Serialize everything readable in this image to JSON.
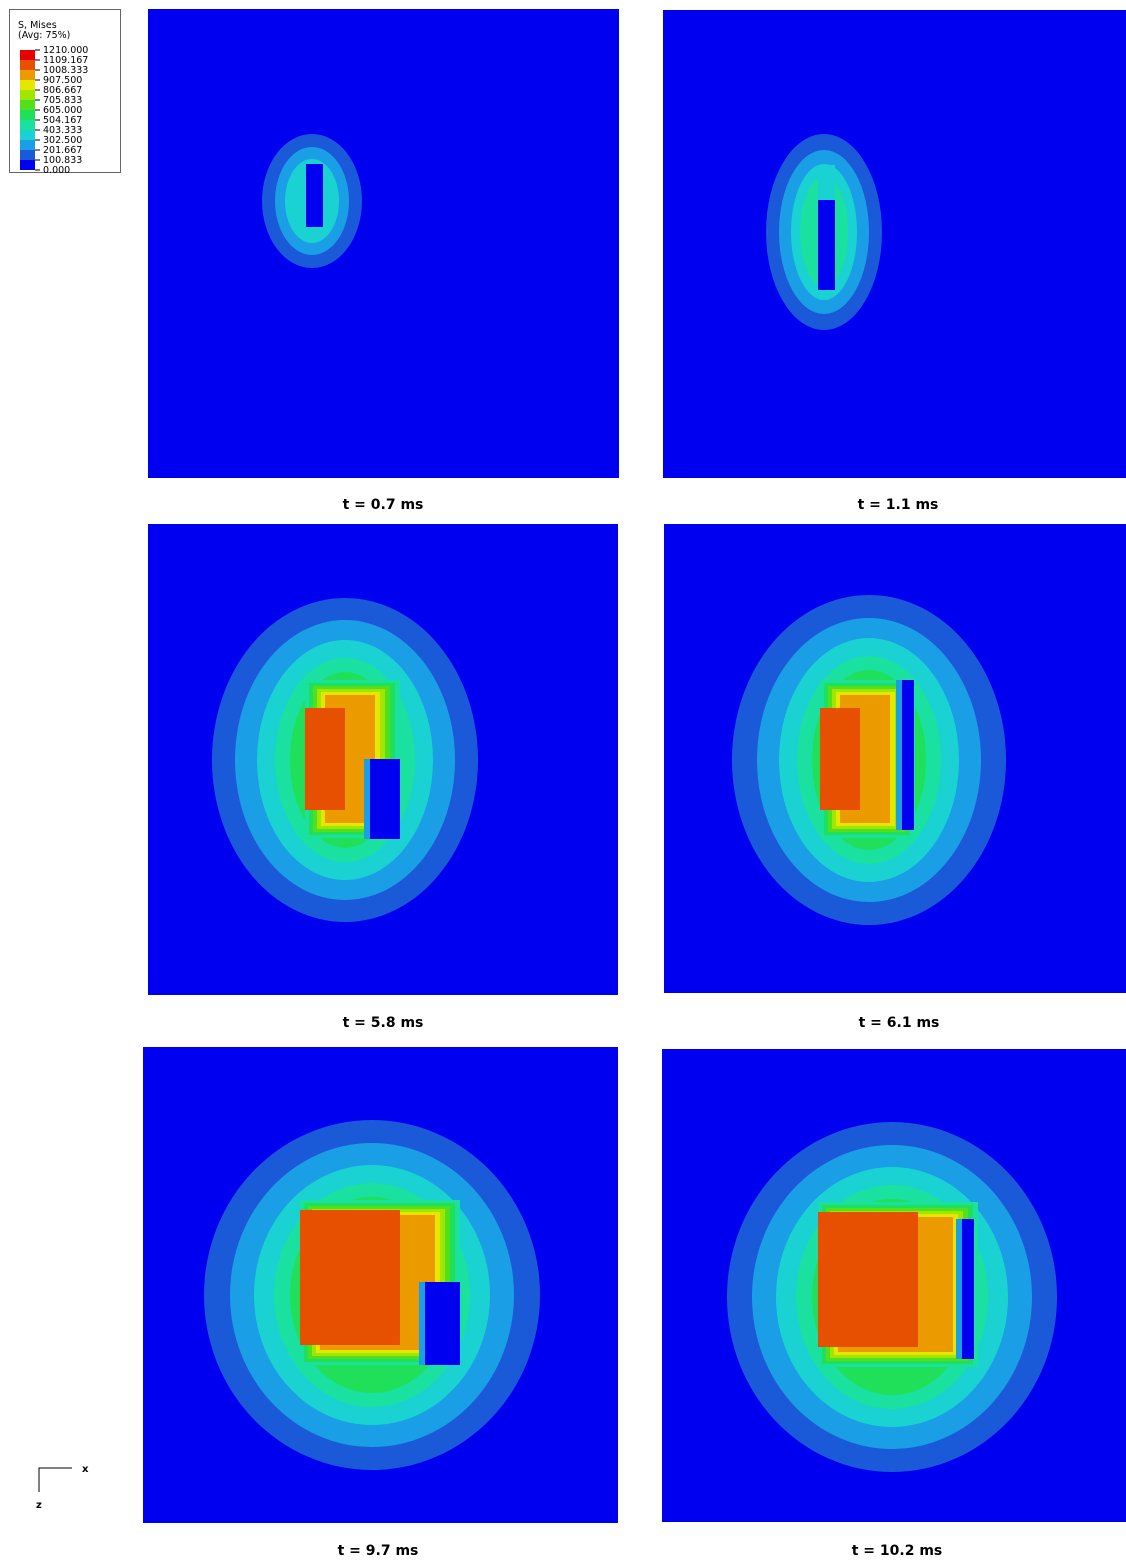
{
  "legend": {
    "title": "S, Mises",
    "subtitle": "(Avg: 75%)",
    "values": [
      "1210.000",
      "1109.167",
      "1008.333",
      "907.500",
      "806.667",
      "705.833",
      "605.000",
      "504.167",
      "403.333",
      "302.500",
      "201.667",
      "100.833",
      "0.000"
    ]
  },
  "panels": [
    {
      "caption": "t = 0.7 ms"
    },
    {
      "caption": "t = 1.1 ms"
    },
    {
      "caption": "t = 5.8 ms"
    },
    {
      "caption": "t = 6.1 ms"
    },
    {
      "caption": "t = 9.7 ms"
    },
    {
      "caption": "t = 10.2 ms"
    }
  ],
  "triad": {
    "x": "x",
    "z": "z"
  }
}
